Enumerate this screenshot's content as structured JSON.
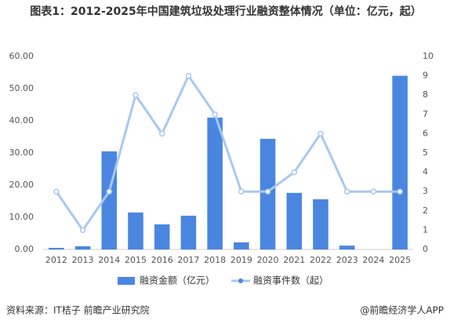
{
  "chart_data": {
    "type": "bar-line",
    "title": "图表1：2012-2025年中国建筑垃圾处理行业融资整体情况（单位：亿元，起）",
    "categories": [
      "2012",
      "2013",
      "2014",
      "2015",
      "2016",
      "2017",
      "2018",
      "2019",
      "2020",
      "2021",
      "2022",
      "2023",
      "2024",
      "2025"
    ],
    "series": [
      {
        "name": "融资金额（亿元）",
        "type": "bar",
        "color": "#4a86e0",
        "values": [
          0.5,
          1,
          30.5,
          11.5,
          7.8,
          10.5,
          41,
          2.2,
          34.4,
          17.6,
          15.6,
          1.2,
          0,
          54
        ]
      },
      {
        "name": "融资事件数（起）",
        "type": "line",
        "axis": "y2",
        "color": "#a8c8ee",
        "values": [
          3,
          1,
          3,
          8,
          6,
          9,
          7,
          3,
          3,
          4,
          6,
          3,
          3,
          3
        ]
      }
    ],
    "ylim": [
      0,
      60
    ],
    "yticks": [
      {
        "value": 0,
        "label": "0.00"
      },
      {
        "value": 10,
        "label": "10.00"
      },
      {
        "value": 20,
        "label": "20.00"
      },
      {
        "value": 30,
        "label": "30.00"
      },
      {
        "value": 40,
        "label": "40.00"
      },
      {
        "value": 50,
        "label": "50.00"
      },
      {
        "value": 60,
        "label": "60.00"
      }
    ],
    "y2lim": [
      0,
      10
    ],
    "y2ticks": [
      0,
      1,
      2,
      3,
      4,
      5,
      6,
      7,
      8,
      9,
      10
    ],
    "source": "资料来源：IT桔子 前瞻产业研究院",
    "credit": "@前瞻经济学人APP"
  }
}
